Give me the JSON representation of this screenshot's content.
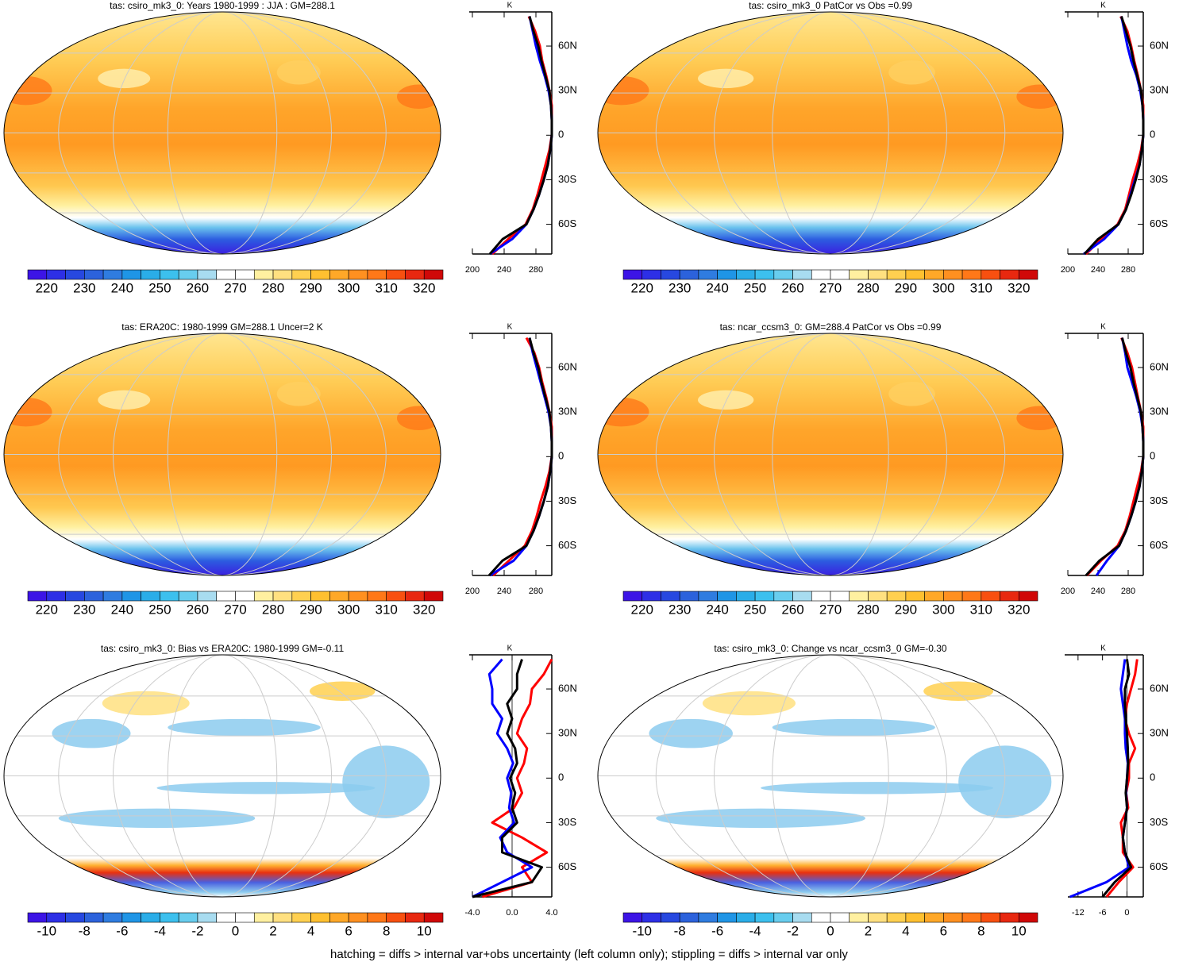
{
  "chart_data": [
    {
      "type": "map",
      "title": "tas: csiro_mk3_0: Years 1980-1999 : JJA : GM=288.1",
      "colorbar": {
        "lim": [
          215,
          325
        ],
        "ticks": [
          220,
          230,
          240,
          250,
          260,
          270,
          280,
          290,
          300,
          310,
          320
        ],
        "colors": [
          "#3c14e6",
          "#2d2fe6",
          "#2748e0",
          "#2c62dc",
          "#2f7ce0",
          "#1f95e6",
          "#2aade8",
          "#3cc0ee",
          "#68cdee",
          "#a8dcf0",
          "#ffffff",
          "#ffffff",
          "#fff0a0",
          "#ffe080",
          "#ffd050",
          "#ffc030",
          "#ffa828",
          "#ff9020",
          "#ff7818",
          "#f85010",
          "#e82810",
          "#d00808"
        ]
      }
    },
    {
      "type": "line",
      "x_label": "K",
      "y": [
        -80,
        -70,
        -60,
        -50,
        -40,
        -30,
        -20,
        -10,
        0,
        10,
        20,
        30,
        40,
        50,
        60,
        70,
        80
      ],
      "series": [
        {
          "color": "#ff0000",
          "values": [
            225,
            245,
            267,
            276,
            282,
            287,
            292,
            297,
            300,
            300,
            300,
            297,
            293,
            288,
            285,
            279,
            271
          ]
        },
        {
          "color": "#0000ff",
          "values": [
            222,
            250,
            268,
            277,
            284,
            290,
            295,
            298,
            300,
            300,
            299,
            296,
            291,
            285,
            280,
            276,
            272
          ]
        },
        {
          "color": "#000000",
          "values": [
            222,
            238,
            268,
            277,
            284,
            290,
            295,
            298,
            300,
            300,
            299,
            297,
            292,
            287,
            283,
            277,
            272
          ]
        }
      ],
      "xlim": [
        200,
        300
      ],
      "xticks": [
        200,
        240,
        280
      ],
      "ylim": [
        -80,
        83
      ],
      "yticks": [
        {
          "value": 60,
          "label": "60N"
        },
        {
          "value": 30,
          "label": "30N"
        },
        0,
        {
          "value": -30,
          "label": "30S"
        },
        {
          "value": -60,
          "label": "60S"
        }
      ]
    },
    {
      "type": "map",
      "title": "tas: csiro_mk3_0 PatCor vs Obs =0.99",
      "colorbar": {
        "lim": [
          215,
          325
        ],
        "ticks": [
          220,
          230,
          240,
          250,
          260,
          270,
          280,
          290,
          300,
          310,
          320
        ],
        "colors": [
          "#3c14e6",
          "#2d2fe6",
          "#2748e0",
          "#2c62dc",
          "#2f7ce0",
          "#1f95e6",
          "#2aade8",
          "#3cc0ee",
          "#68cdee",
          "#a8dcf0",
          "#ffffff",
          "#ffffff",
          "#fff0a0",
          "#ffe080",
          "#ffd050",
          "#ffc030",
          "#ffa828",
          "#ff9020",
          "#ff7818",
          "#f85010",
          "#e82810",
          "#d00808"
        ]
      }
    },
    {
      "type": "line",
      "x_label": "K",
      "y": [
        -80,
        -70,
        -60,
        -50,
        -40,
        -30,
        -20,
        -10,
        0,
        10,
        20,
        30,
        40,
        50,
        60,
        70,
        80
      ],
      "series": [
        {
          "color": "#ff0000",
          "values": [
            224,
            244,
            266,
            276,
            281,
            286,
            292,
            297,
            300,
            300,
            300,
            297,
            293,
            288,
            284,
            279,
            270
          ]
        },
        {
          "color": "#0000ff",
          "values": [
            221,
            248,
            267,
            277,
            283,
            289,
            295,
            298,
            300,
            300,
            299,
            296,
            291,
            284,
            279,
            275,
            271
          ]
        },
        {
          "color": "#000000",
          "values": [
            222,
            240,
            267,
            277,
            284,
            290,
            295,
            298,
            300,
            300,
            299,
            297,
            292,
            287,
            283,
            277,
            271
          ]
        }
      ],
      "xlim": [
        200,
        300
      ],
      "xticks": [
        200,
        240,
        280
      ],
      "ylim": [
        -80,
        83
      ],
      "yticks": [
        {
          "value": 60,
          "label": "60N"
        },
        {
          "value": 30,
          "label": "30N"
        },
        0,
        {
          "value": -30,
          "label": "30S"
        },
        {
          "value": -60,
          "label": "60S"
        }
      ]
    },
    {
      "type": "map",
      "title": "tas: ERA20C: 1980-1999 GM=288.1 Uncer=2 K",
      "colorbar": {
        "lim": [
          215,
          325
        ],
        "ticks": [
          220,
          230,
          240,
          250,
          260,
          270,
          280,
          290,
          300,
          310,
          320
        ],
        "colors": [
          "#3c14e6",
          "#2d2fe6",
          "#2748e0",
          "#2c62dc",
          "#2f7ce0",
          "#1f95e6",
          "#2aade8",
          "#3cc0ee",
          "#68cdee",
          "#a8dcf0",
          "#ffffff",
          "#ffffff",
          "#fff0a0",
          "#ffe080",
          "#ffd050",
          "#ffc030",
          "#ffa828",
          "#ff9020",
          "#ff7818",
          "#f85010",
          "#e82810",
          "#d00808"
        ]
      }
    },
    {
      "type": "line",
      "x_label": "K",
      "y": [
        -80,
        -70,
        -60,
        -50,
        -40,
        -30,
        -20,
        -10,
        0,
        10,
        20,
        30,
        40,
        50,
        60,
        70,
        80
      ],
      "series": [
        {
          "color": "#ff0000",
          "values": [
            226,
            246,
            266,
            275,
            281,
            286,
            292,
            297,
            300,
            300,
            300,
            297,
            293,
            288,
            284,
            278,
            268
          ]
        },
        {
          "color": "#0000ff",
          "values": [
            222,
            252,
            268,
            277,
            284,
            290,
            295,
            298,
            300,
            300,
            299,
            296,
            291,
            286,
            281,
            276,
            272
          ]
        },
        {
          "color": "#000000",
          "values": [
            221,
            238,
            268,
            277,
            284,
            290,
            295,
            298,
            300,
            300,
            299,
            297,
            292,
            287,
            283,
            277,
            272
          ]
        }
      ],
      "xlim": [
        200,
        300
      ],
      "xticks": [
        200,
        240,
        280
      ],
      "ylim": [
        -80,
        83
      ],
      "yticks": [
        {
          "value": 60,
          "label": "60N"
        },
        {
          "value": 30,
          "label": "30N"
        },
        0,
        {
          "value": -30,
          "label": "30S"
        },
        {
          "value": -60,
          "label": "60S"
        }
      ]
    },
    {
      "type": "map",
      "title": "tas: ncar_ccsm3_0: GM=288.4 PatCor vs Obs =0.99",
      "colorbar": {
        "lim": [
          215,
          325
        ],
        "ticks": [
          220,
          230,
          240,
          250,
          260,
          270,
          280,
          290,
          300,
          310,
          320
        ],
        "colors": [
          "#3c14e6",
          "#2d2fe6",
          "#2748e0",
          "#2c62dc",
          "#2f7ce0",
          "#1f95e6",
          "#2aade8",
          "#3cc0ee",
          "#68cdee",
          "#a8dcf0",
          "#ffffff",
          "#ffffff",
          "#fff0a0",
          "#ffe080",
          "#ffd050",
          "#ffc030",
          "#ffa828",
          "#ff9020",
          "#ff7818",
          "#f85010",
          "#e82810",
          "#d00808"
        ]
      }
    },
    {
      "type": "line",
      "x_label": "K",
      "y": [
        -80,
        -70,
        -60,
        -50,
        -40,
        -30,
        -20,
        -10,
        0,
        10,
        20,
        30,
        40,
        50,
        60,
        70,
        80
      ],
      "series": [
        {
          "color": "#ff0000",
          "values": [
            225,
            244,
            266,
            276,
            282,
            287,
            292,
            297,
            300,
            300,
            300,
            297,
            293,
            289,
            285,
            279,
            271
          ]
        },
        {
          "color": "#0000ff",
          "values": [
            238,
            252,
            268,
            277,
            284,
            290,
            295,
            298,
            300,
            300,
            299,
            296,
            291,
            285,
            279,
            276,
            272
          ]
        },
        {
          "color": "#000000",
          "values": [
            224,
            242,
            268,
            277,
            284,
            290,
            295,
            298,
            300,
            300,
            299,
            297,
            292,
            287,
            283,
            277,
            272
          ]
        }
      ],
      "xlim": [
        200,
        300
      ],
      "xticks": [
        200,
        240,
        280
      ],
      "ylim": [
        -80,
        83
      ],
      "yticks": [
        {
          "value": 60,
          "label": "60N"
        },
        {
          "value": 30,
          "label": "30N"
        },
        0,
        {
          "value": -30,
          "label": "30S"
        },
        {
          "value": -60,
          "label": "60S"
        }
      ]
    },
    {
      "type": "map",
      "title": "tas: csiro_mk3_0: Bias vs ERA20C: 1980-1999 GM=-0.11",
      "colorbar": {
        "lim": [
          -11,
          11
        ],
        "ticks": [
          -10,
          -8,
          -6,
          -4,
          -2,
          0,
          2,
          4,
          6,
          8,
          10
        ],
        "colors": [
          "#3c14e6",
          "#2d2fe6",
          "#2748e0",
          "#2c62dc",
          "#2f7ce0",
          "#1f95e6",
          "#2aade8",
          "#3cc0ee",
          "#68cdee",
          "#a8dcf0",
          "#ffffff",
          "#ffffff",
          "#fff0a0",
          "#ffe080",
          "#ffd050",
          "#ffc030",
          "#ffa828",
          "#ff9020",
          "#ff7818",
          "#f85010",
          "#e82810",
          "#d00808"
        ]
      }
    },
    {
      "type": "line",
      "x_label": "K",
      "zero_line": true,
      "y": [
        -80,
        -70,
        -60,
        -50,
        -40,
        -30,
        -20,
        -10,
        0,
        10,
        20,
        30,
        40,
        50,
        60,
        70,
        80
      ],
      "series": [
        {
          "color": "#ff0000",
          "values": [
            -3,
            2,
            1,
            3.5,
            1,
            -2,
            0.2,
            1,
            0.5,
            1.2,
            1.5,
            0.5,
            1,
            1.8,
            2,
            3.2,
            4
          ]
        },
        {
          "color": "#0000ff",
          "values": [
            -4,
            -1,
            2,
            -0.5,
            -1.2,
            0.2,
            -0.3,
            -0.1,
            -0.5,
            0.1,
            -0.5,
            -1.5,
            -1,
            -2,
            -2,
            -2.3,
            -1
          ]
        },
        {
          "color": "#000000",
          "values": [
            -4,
            2,
            3,
            -1,
            -1,
            0.5,
            0,
            0.3,
            -0.2,
            0.5,
            0.3,
            -0.5,
            0,
            -0.5,
            0.5,
            0.5,
            1
          ]
        }
      ],
      "xlim": [
        -4,
        4
      ],
      "xticks": [
        {
          "value": -4,
          "label": "-4.0"
        },
        {
          "value": 0,
          "label": "0.0"
        },
        {
          "value": 4,
          "label": "4.0"
        }
      ],
      "ylim": [
        -80,
        83
      ],
      "yticks": [
        {
          "value": 60,
          "label": "60N"
        },
        {
          "value": 30,
          "label": "30N"
        },
        0,
        {
          "value": -30,
          "label": "30S"
        },
        {
          "value": -60,
          "label": "60S"
        }
      ]
    },
    {
      "type": "map",
      "title": "tas: csiro_mk3_0: Change vs ncar_ccsm3_0 GM=-0.30",
      "colorbar": {
        "lim": [
          -11,
          11
        ],
        "ticks": [
          -10,
          -8,
          -6,
          -4,
          -2,
          0,
          2,
          4,
          6,
          8,
          10
        ],
        "colors": [
          "#3c14e6",
          "#2d2fe6",
          "#2748e0",
          "#2c62dc",
          "#2f7ce0",
          "#1f95e6",
          "#2aade8",
          "#3cc0ee",
          "#68cdee",
          "#a8dcf0",
          "#ffffff",
          "#ffffff",
          "#fff0a0",
          "#ffe080",
          "#ffd050",
          "#ffc030",
          "#ffa828",
          "#ff9020",
          "#ff7818",
          "#f85010",
          "#e82810",
          "#d00808"
        ]
      }
    },
    {
      "type": "line",
      "x_label": "K",
      "zero_line": true,
      "y": [
        -80,
        -70,
        -60,
        -50,
        -40,
        -30,
        -20,
        -10,
        0,
        10,
        20,
        30,
        40,
        50,
        60,
        70,
        80
      ],
      "series": [
        {
          "color": "#ff0000",
          "values": [
            -5,
            -2,
            1.5,
            -1,
            -1,
            -1.5,
            0.3,
            -0.2,
            0.5,
            0.5,
            2,
            0.5,
            -0.5,
            0,
            1,
            2,
            2.5
          ]
        },
        {
          "color": "#0000ff",
          "values": [
            -14,
            -5,
            0.5,
            -0.5,
            -1,
            -0.5,
            0,
            -0.2,
            0,
            0.2,
            -0.3,
            -0.5,
            -0.5,
            -1,
            -1.5,
            -1,
            -0.5
          ]
        },
        {
          "color": "#000000",
          "values": [
            -6,
            -3,
            1,
            -0.5,
            -1,
            -0.5,
            0,
            -0.3,
            0,
            0.3,
            0.2,
            0,
            -0.3,
            -0.5,
            -0.5,
            0.5,
            0
          ]
        }
      ],
      "xlim": [
        -14.5,
        4
      ],
      "xticks": [
        -12,
        -6,
        0
      ],
      "ylim": [
        -80,
        83
      ],
      "yticks": [
        {
          "value": 60,
          "label": "60N"
        },
        {
          "value": 30,
          "label": "30N"
        },
        0,
        {
          "value": -30,
          "label": "30S"
        },
        {
          "value": -60,
          "label": "60S"
        }
      ]
    }
  ],
  "footer": "hatching = diffs > internal var+obs uncertainty (left column only); stippling = diffs > internal var only"
}
